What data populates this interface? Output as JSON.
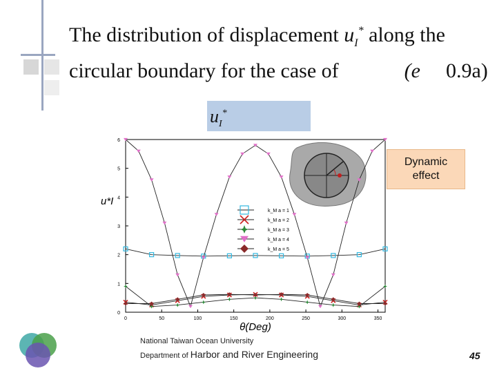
{
  "slide": {
    "title_line1_pre": "The distribution of displacement",
    "title_line1_post": "along the",
    "title_line2_pre": "circular boundary for the case of",
    "title_line2_eq": "(e",
    "title_line2_val": "0.9a)",
    "symbol_u": "u",
    "symbol_sub": "I",
    "symbol_star": "*",
    "formula_text": "u",
    "dynamic_label_1": "Dynamic",
    "dynamic_label_2": "effect",
    "footer_line1": "National Taiwan Ocean University",
    "footer_line2_pre": "Department of",
    "footer_line2_main": "Harbor and River Engineering",
    "page_number": "45"
  },
  "colors": {
    "formula_bg": "#b9cde6",
    "dynamic_bg": "#fbd8b8",
    "series1": "#33b8e0",
    "series2": "#cc2222",
    "series3": "#2e8a3a",
    "series4": "#e070c8",
    "series5": "#8a2a2a"
  },
  "chart_data": {
    "type": "line",
    "xlabel": "θ(Deg)",
    "ylabel": "u*I",
    "xlim": [
      0,
      360
    ],
    "ylim": [
      0,
      6
    ],
    "x_ticks": [
      0,
      50,
      100,
      150,
      200,
      250,
      300,
      350
    ],
    "y_ticks": [
      0,
      1,
      2,
      3,
      4,
      5,
      6
    ],
    "legend_position": "center",
    "series": [
      {
        "name": "k_M a = 1",
        "marker": "square",
        "color": "#33b8e0",
        "x": [
          0,
          36,
          72,
          108,
          144,
          180,
          216,
          252,
          288,
          324,
          360
        ],
        "y": [
          2.2,
          2.0,
          1.97,
          1.95,
          1.96,
          1.97,
          1.96,
          1.95,
          1.97,
          2.0,
          2.2
        ]
      },
      {
        "name": "k_M a = 2",
        "marker": "cross",
        "color": "#cc2222",
        "x": [
          0,
          36,
          72,
          108,
          144,
          180,
          216,
          252,
          288,
          324,
          360
        ],
        "y": [
          0.35,
          0.25,
          0.4,
          0.55,
          0.6,
          0.62,
          0.6,
          0.55,
          0.4,
          0.25,
          0.35
        ]
      },
      {
        "name": "k_M a = 3",
        "marker": "star",
        "color": "#2e8a3a",
        "x": [
          0,
          36,
          72,
          108,
          144,
          180,
          216,
          252,
          288,
          324,
          360
        ],
        "y": [
          0.9,
          0.2,
          0.25,
          0.35,
          0.45,
          0.5,
          0.45,
          0.35,
          0.25,
          0.2,
          0.9
        ]
      },
      {
        "name": "k_M a = 4",
        "marker": "triangle-down",
        "color": "#e070c8",
        "x": [
          0,
          18,
          36,
          54,
          72,
          90,
          108,
          126,
          144,
          162,
          180,
          198,
          216,
          234,
          252,
          270,
          288,
          306,
          324,
          342,
          360
        ],
        "y": [
          6.0,
          5.6,
          4.6,
          3.1,
          1.3,
          0.2,
          1.9,
          3.4,
          4.7,
          5.5,
          5.8,
          5.5,
          4.7,
          3.4,
          1.9,
          0.2,
          1.3,
          3.1,
          4.6,
          5.6,
          6.0
        ]
      },
      {
        "name": "k_M a = 5",
        "marker": "diamond",
        "color": "#8a2a2a",
        "x": [
          0,
          36,
          72,
          108,
          144,
          180,
          216,
          252,
          288,
          324,
          360
        ],
        "y": [
          0.3,
          0.3,
          0.45,
          0.6,
          0.62,
          0.6,
          0.62,
          0.6,
          0.45,
          0.3,
          0.3
        ]
      }
    ]
  }
}
